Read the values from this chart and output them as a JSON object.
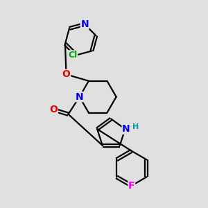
{
  "bg_color": "#e0e0e0",
  "bond_color": "#000000",
  "bond_width": 1.6,
  "atom_colors": {
    "N": "#0000ee",
    "O": "#ee0000",
    "Cl": "#00aa00",
    "F": "#ee00ee",
    "H": "#009999",
    "C": "#000000"
  }
}
